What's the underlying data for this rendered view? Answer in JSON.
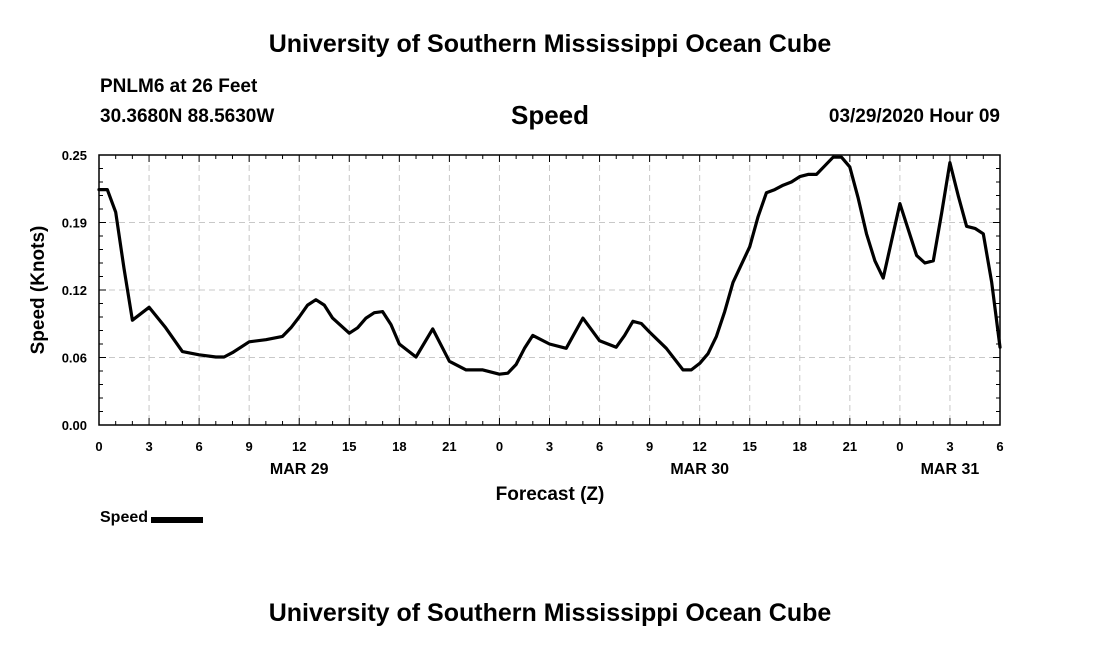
{
  "header": {
    "title": "University of Southern Mississippi Ocean Cube",
    "station": "PNLM6 at 26 Feet",
    "coordinates": "30.3680N 88.5630W",
    "variable": "Speed",
    "timestamp": "03/29/2020 Hour 09"
  },
  "footer": {
    "title": "University of Southern Mississippi Ocean Cube"
  },
  "legend": {
    "label": "Speed"
  },
  "chart_data": {
    "type": "line",
    "title": "Speed",
    "xlabel": "Forecast (Z)",
    "ylabel": "Speed (Knots)",
    "ylim": [
      0.0,
      0.25
    ],
    "xlim": [
      0,
      54
    ],
    "x_unit": "hours from 03/29/2020 00Z",
    "x_ticks": [
      {
        "hour": 0,
        "label": "0"
      },
      {
        "hour": 3,
        "label": "3"
      },
      {
        "hour": 6,
        "label": "6"
      },
      {
        "hour": 9,
        "label": "9"
      },
      {
        "hour": 12,
        "label": "12"
      },
      {
        "hour": 15,
        "label": "15"
      },
      {
        "hour": 18,
        "label": "18"
      },
      {
        "hour": 21,
        "label": "21"
      },
      {
        "hour": 24,
        "label": "0"
      },
      {
        "hour": 27,
        "label": "3"
      },
      {
        "hour": 30,
        "label": "6"
      },
      {
        "hour": 33,
        "label": "9"
      },
      {
        "hour": 36,
        "label": "12"
      },
      {
        "hour": 39,
        "label": "15"
      },
      {
        "hour": 42,
        "label": "18"
      },
      {
        "hour": 45,
        "label": "21"
      },
      {
        "hour": 48,
        "label": "0"
      },
      {
        "hour": 51,
        "label": "3"
      },
      {
        "hour": 54,
        "label": "6"
      }
    ],
    "y_ticks": [
      {
        "value": 0.0,
        "label": "0.00"
      },
      {
        "value": 0.0625,
        "label": "0.06"
      },
      {
        "value": 0.125,
        "label": "0.12"
      },
      {
        "value": 0.1875,
        "label": "0.19"
      },
      {
        "value": 0.25,
        "label": "0.25"
      }
    ],
    "date_labels": [
      {
        "hour": 12,
        "label": "MAR 29"
      },
      {
        "hour": 36,
        "label": "MAR 30"
      },
      {
        "hour": 51,
        "label": "MAR 31"
      }
    ],
    "grid": true,
    "series": [
      {
        "name": "Speed",
        "x": [
          0,
          0.5,
          1,
          1.5,
          2,
          3,
          4,
          5,
          6,
          7,
          7.5,
          8,
          9,
          10,
          11,
          11.5,
          12,
          12.5,
          13,
          13.5,
          14,
          15,
          15.5,
          16,
          16.5,
          17,
          17.5,
          18,
          19,
          20,
          21,
          22,
          23,
          24,
          24.5,
          25,
          25.5,
          26,
          27,
          28,
          29,
          30,
          31,
          31.5,
          32,
          32.5,
          33,
          34,
          35,
          35.5,
          36,
          36.5,
          37,
          37.5,
          38,
          39,
          39.5,
          40,
          40.5,
          41,
          41.5,
          42,
          42.5,
          43,
          43.5,
          44,
          44.5,
          45,
          45.5,
          46,
          46.5,
          47,
          48,
          49,
          49.5,
          50,
          50.5,
          51,
          51.5,
          52,
          52.5,
          53,
          53.5,
          54
        ],
        "values": [
          0.218,
          0.218,
          0.197,
          0.145,
          0.097,
          0.109,
          0.09,
          0.068,
          0.065,
          0.063,
          0.063,
          0.067,
          0.077,
          0.079,
          0.082,
          0.09,
          0.1,
          0.111,
          0.116,
          0.111,
          0.099,
          0.085,
          0.09,
          0.099,
          0.104,
          0.105,
          0.093,
          0.075,
          0.063,
          0.089,
          0.059,
          0.051,
          0.051,
          0.047,
          0.048,
          0.056,
          0.071,
          0.083,
          0.075,
          0.071,
          0.099,
          0.078,
          0.072,
          0.083,
          0.096,
          0.094,
          0.086,
          0.071,
          0.051,
          0.051,
          0.057,
          0.066,
          0.082,
          0.105,
          0.132,
          0.165,
          0.193,
          0.215,
          0.218,
          0.222,
          0.225,
          0.23,
          0.232,
          0.232,
          0.24,
          0.248,
          0.248,
          0.239,
          0.21,
          0.177,
          0.152,
          0.136,
          0.205,
          0.157,
          0.15,
          0.152,
          0.196,
          0.243,
          0.212,
          0.184,
          0.182,
          0.177,
          0.132,
          0.072
        ]
      }
    ]
  }
}
